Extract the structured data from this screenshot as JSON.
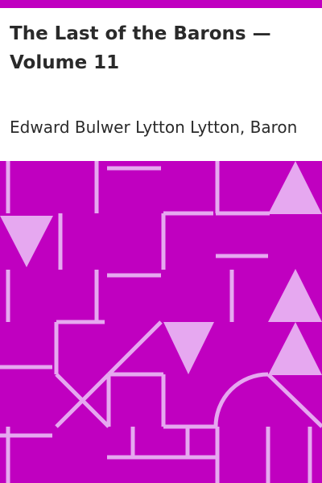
{
  "book": {
    "title": "The Last of the Barons — Volume 11",
    "author": "Edward Bulwer Lytton Lytton, Baron"
  },
  "colors": {
    "accent": "#c000c0",
    "pattern_light": "#e6a8f0",
    "text": "#2a2a2a",
    "background": "#ffffff"
  }
}
